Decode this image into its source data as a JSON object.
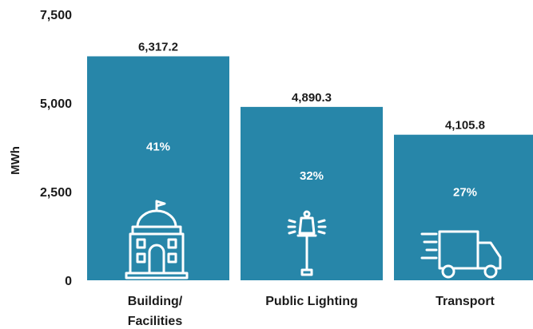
{
  "chart_data": {
    "type": "bar",
    "ylabel": "MWh",
    "xlabel": "",
    "ylim": [
      0,
      7500
    ],
    "yticks": [
      0,
      2500,
      5000,
      7500
    ],
    "ytick_labels": [
      "0",
      "2,500",
      "5,000",
      "7,500"
    ],
    "grid": false,
    "legend": "none",
    "bar_color": "#2786a9",
    "categories": [
      "Building/ Facilities",
      "Public Lighting",
      "Transport"
    ],
    "values": [
      6317.2,
      4890.3,
      4105.8
    ],
    "value_labels": [
      "6,317.2",
      "4,890.3",
      "4,105.8"
    ],
    "percent_labels": [
      "41%",
      "32%",
      "27%"
    ],
    "icons": [
      "building-icon",
      "street-lamp-icon",
      "delivery-truck-icon"
    ]
  }
}
